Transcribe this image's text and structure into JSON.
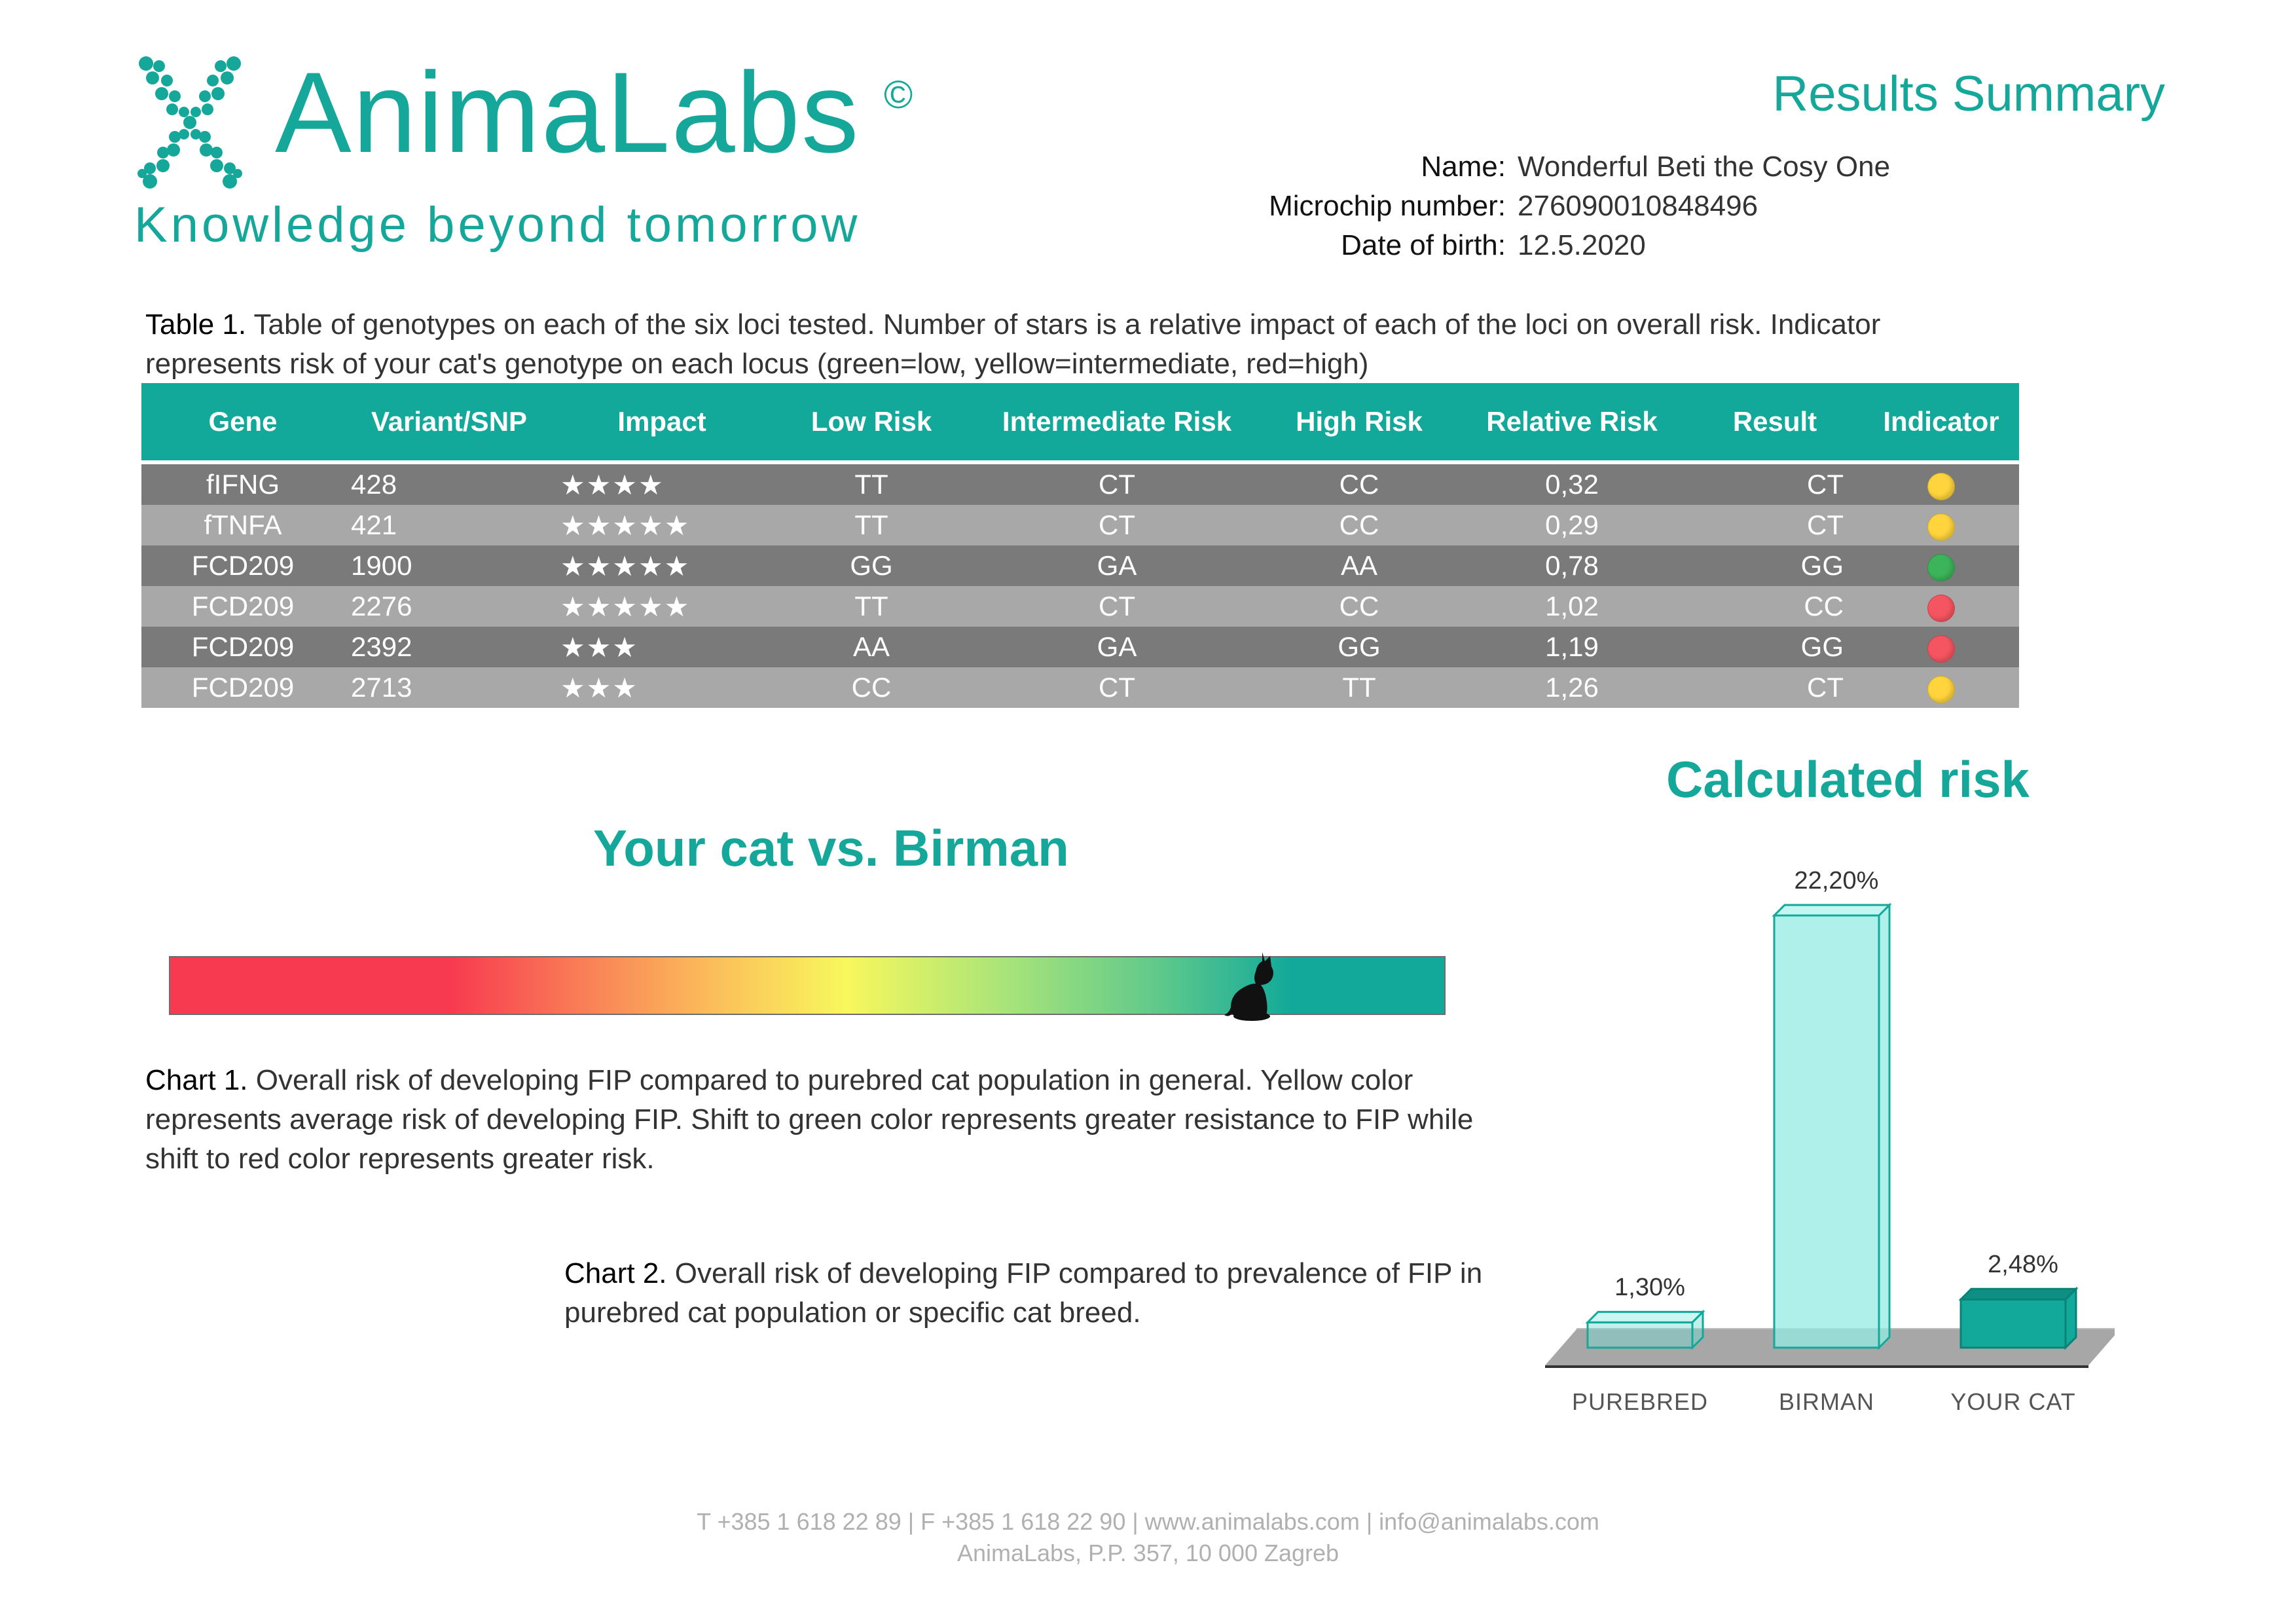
{
  "header": {
    "brand": "AnimaLabs",
    "copyright": "©",
    "tagline": "Knowledge beyond tomorrow",
    "title": "Results Summary"
  },
  "pet": {
    "name_label": "Name:",
    "name": "Wonderful Beti the Cosy One",
    "chip_label": "Microchip number:",
    "chip": "276090010848496",
    "dob_label": "Date of birth:",
    "dob": "12.5.2020"
  },
  "table_caption": {
    "prefix": "Table 1.",
    "text": " Table of genotypes on each of the six loci tested. Number of stars is a relative impact of each of the loci on overall risk. Indicator represents risk of your cat's genotype on each locus (green=low, yellow=intermediate, red=high)"
  },
  "table": {
    "headers": [
      "Gene",
      "Variant/SNP",
      "Impact",
      "Low Risk",
      "Intermediate Risk",
      "High Risk",
      "Relative Risk",
      "Result",
      "Indicator"
    ],
    "rows": [
      {
        "gene": "fIFNG",
        "variant": "428",
        "impact": "★★★★",
        "low": "TT",
        "intermediate": "CT",
        "high": "CC",
        "relative": "0,32",
        "result": "CT",
        "indicator": "yellow"
      },
      {
        "gene": "fTNFA",
        "variant": "421",
        "impact": "★★★★★",
        "low": "TT",
        "intermediate": "CT",
        "high": "CC",
        "relative": "0,29",
        "result": "CT",
        "indicator": "yellow"
      },
      {
        "gene": "FCD209",
        "variant": "1900",
        "impact": "★★★★★",
        "low": "GG",
        "intermediate": "GA",
        "high": "AA",
        "relative": "0,78",
        "result": "GG",
        "indicator": "green"
      },
      {
        "gene": "FCD209",
        "variant": "2276",
        "impact": "★★★★★",
        "low": "TT",
        "intermediate": "CT",
        "high": "CC",
        "relative": "1,02",
        "result": "CC",
        "indicator": "red"
      },
      {
        "gene": "FCD209",
        "variant": "2392",
        "impact": "★★★",
        "low": "AA",
        "intermediate": "GA",
        "high": "GG",
        "relative": "1,19",
        "result": "GG",
        "indicator": "red"
      },
      {
        "gene": "FCD209",
        "variant": "2713",
        "impact": "★★★",
        "low": "CC",
        "intermediate": "CT",
        "high": "TT",
        "relative": "1,26",
        "result": "CT",
        "indicator": "yellow"
      }
    ]
  },
  "indicator_colors": {
    "yellow": "#ffd43c",
    "green": "#3cb45a",
    "red": "#f55560"
  },
  "compare": {
    "title": "Your cat vs. Birman",
    "cat_position": 0.85,
    "cat_icon": "cat-icon"
  },
  "chart1_caption": {
    "prefix": "Chart 1.",
    "text": " Overall risk of developing FIP compared to purebred cat population in general. Yellow color represents average risk of developing FIP. Shift to green color represents greater resistance to FIP while shift to red color represents greater risk."
  },
  "chart2_caption": {
    "prefix": "Chart 2.",
    "text": " Overall risk of developing FIP compared to  prevalence of FIP in purebred cat population or specific cat breed."
  },
  "chart_data": {
    "type": "bar",
    "title": "Calculated risk",
    "categories": [
      "PUREBRED",
      "BIRMAN",
      "YOUR CAT"
    ],
    "values": [
      1.3,
      22.2,
      2.48
    ],
    "value_labels": [
      "1,30%",
      "22,20%",
      "2,48%"
    ],
    "ylim": [
      0,
      22.2
    ],
    "legend": "none",
    "grid": false
  },
  "footer": {
    "line1": "T +385 1 618 22 89  |  F +385 1 618 22 90  |  www.animalabs.com  |  info@animalabs.com",
    "line2": "AnimaLabs, P.P. 357, 10 000 Zagreb"
  }
}
